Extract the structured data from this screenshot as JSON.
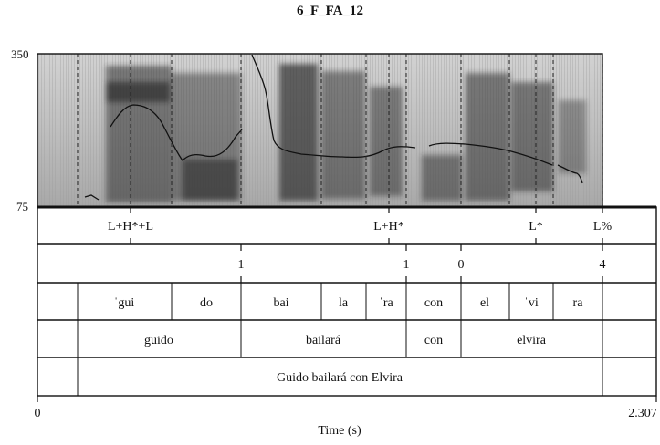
{
  "title": "6_F_FA_12",
  "pitch_axis": {
    "max_label": "350",
    "min_label": "75"
  },
  "time_axis": {
    "start_label": "0",
    "end_label": "2.307",
    "label": "Time (s)"
  },
  "tiers": {
    "tones": [
      "L+H*+L",
      "L+H*",
      "L*",
      "L%"
    ],
    "break_indices": [
      "1",
      "1",
      "0",
      "4"
    ],
    "syllables": [
      "ˈgui",
      "do",
      "bai",
      "la",
      "ˈra",
      "con",
      "el",
      "ˈvi",
      "ra"
    ],
    "words": [
      "guido",
      "bailará",
      "con",
      "elvira"
    ],
    "utterance": "Guido bailará con Elvira"
  }
}
